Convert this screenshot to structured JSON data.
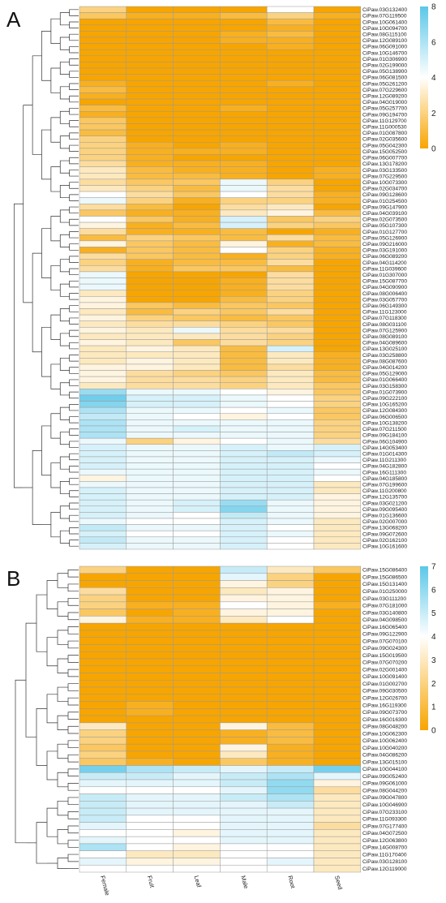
{
  "columns": [
    "Female",
    "Fruit",
    "Leaf",
    "Male",
    "Root",
    "Seed"
  ],
  "colors": {
    "low": "#F7A500",
    "mid": "#FFFFFF",
    "high": "#5BC7E8"
  },
  "chart_data": [
    {
      "type": "heatmap",
      "panel": "A",
      "min": 0,
      "mid": 4,
      "max": 8,
      "legend_ticks": [
        "8",
        "6",
        "4",
        "2",
        "0"
      ],
      "columns": [
        "Female",
        "Fruit",
        "Leaf",
        "Male",
        "Root",
        "Seed"
      ],
      "rows": [
        "CiPaw.03G132400",
        "CiPaw.07G119500",
        "CiPaw.10G061400",
        "CiPaw.10G094700",
        "CiPaw.08G115100",
        "CiPaw.12G089100",
        "CiPaw.06G091000",
        "CiPaw.10G146700",
        "CiPaw.01G306900",
        "CiPaw.02G199000",
        "CiPaw.05G138900",
        "CiPaw.06G081500",
        "CiPaw.05G261200",
        "CiPaw.07G229600",
        "CiPaw.12G089200",
        "CiPaw.04G019000",
        "CiPaw.05G257700",
        "CiPaw.09G194700",
        "CiPaw.11G129700",
        "CiPaw.11G000530",
        "CiPaw.01G087800",
        "CiPaw.02G035600",
        "CiPaw.05G042300",
        "CiPaw.15G052500",
        "CiPaw.06G007700",
        "CiPaw.13G178200",
        "CiPaw.03G133500",
        "CiPaw.07G229500",
        "CiPaw.10G073300",
        "CiPaw.02G034700",
        "CiPaw.09G128600",
        "CiPaw.01G254500",
        "CiPaw.09G147900",
        "CiPaw.04G039100",
        "CiPaw.02G073500",
        "CiPaw.05G107300",
        "CiPaw.01G127700",
        "CiPaw.05G126900",
        "CiPaw.09G216000",
        "CiPaw.03G191000",
        "CiPaw.06G089200",
        "CiPaw.04G114200",
        "CiPaw.11G039600",
        "CiPaw.01G307000",
        "CiPaw.15G087700",
        "CiPaw.04G090900",
        "CiPaw.08G006400",
        "CiPaw.03G057700",
        "CiPaw.06G149300",
        "CiPaw.11G123000",
        "CiPaw.07G118300",
        "CiPaw.08G031100",
        "CiPaw.07G125900",
        "CiPaw.08G089100",
        "CiPaw.04G089600",
        "CiPaw.13G025100",
        "CiPaw.03G258800",
        "CiPaw.08G087600",
        "CiPaw.04G014200",
        "CiPaw.05G129000",
        "CiPaw.01G066400",
        "CiPaw.03G158300",
        "CiPaw.01G073900",
        "CiPaw.09G222100",
        "CiPaw.10G165200",
        "CiPaw.12G084300",
        "CiPaw.06G006500",
        "CiPaw.10G138200",
        "CiPaw.07G211500",
        "CiPaw.09G184100",
        "CiPaw.06G104900",
        "CiPaw.14G053400",
        "CiPaw.01G014300",
        "CiPaw.11G211300",
        "CiPaw.04G182800",
        "CiPaw.16G111300",
        "CiPaw.04G185800",
        "CiPaw.07G199600",
        "CiPaw.11G200800",
        "CiPaw.12G135700",
        "CiPaw.03G021200",
        "CiPaw.09G095400",
        "CiPaw.01G136600",
        "CiPaw.02G007000",
        "CiPaw.13G068200",
        "CiPaw.09G072600",
        "CiPaw.02G162100",
        "CiPaw.10G161600"
      ],
      "values": [
        [
          2,
          0,
          0,
          0,
          4,
          0
        ],
        [
          1.5,
          0.5,
          0.5,
          1,
          2,
          0.5
        ],
        [
          0,
          0,
          0,
          0,
          1,
          0
        ],
        [
          0,
          0,
          0,
          0,
          0.5,
          0
        ],
        [
          0,
          0,
          0,
          0.5,
          1,
          0
        ],
        [
          0,
          0,
          0,
          0.5,
          0.5,
          0
        ],
        [
          0,
          0,
          0,
          0,
          0.5,
          0
        ],
        [
          0,
          0,
          0,
          0,
          0,
          0
        ],
        [
          0,
          0,
          0,
          0,
          0,
          0
        ],
        [
          0,
          0,
          0,
          0,
          0,
          0
        ],
        [
          0,
          0,
          0,
          0,
          0,
          0
        ],
        [
          0,
          0,
          0,
          0,
          0,
          0
        ],
        [
          0.5,
          0,
          0,
          0,
          0.5,
          0
        ],
        [
          1,
          0,
          0,
          0,
          0,
          0
        ],
        [
          0.5,
          0,
          0,
          0,
          0,
          0
        ],
        [
          0,
          0,
          0,
          0,
          0,
          0
        ],
        [
          1,
          0,
          0,
          0.5,
          0,
          0
        ],
        [
          0.5,
          0,
          0,
          0,
          0,
          0
        ],
        [
          1.5,
          0,
          0,
          0,
          0,
          0
        ],
        [
          1.5,
          0,
          0,
          0,
          0,
          0
        ],
        [
          1,
          0,
          0,
          0,
          0,
          0
        ],
        [
          2,
          0,
          0,
          0,
          0,
          0
        ],
        [
          2,
          0.5,
          0,
          0.5,
          0,
          0
        ],
        [
          2,
          0.5,
          0.5,
          0.5,
          0,
          0
        ],
        [
          2,
          0.5,
          0,
          0,
          0,
          0
        ],
        [
          2.5,
          0.5,
          0.5,
          0.5,
          0,
          0
        ],
        [
          3,
          1,
          0.5,
          0.5,
          0,
          0.5
        ],
        [
          3,
          1,
          1,
          0.5,
          0,
          0.5
        ],
        [
          2.5,
          1.5,
          1.5,
          4.5,
          2,
          0
        ],
        [
          3,
          2,
          1,
          4.5,
          2.5,
          0
        ],
        [
          4,
          2.5,
          1.5,
          4,
          2.5,
          0.5
        ],
        [
          4.5,
          2,
          0.5,
          2,
          2,
          0.5
        ],
        [
          2.5,
          1,
          0,
          2.5,
          3,
          0
        ],
        [
          1.5,
          0.5,
          0.5,
          3,
          3.5,
          1
        ],
        [
          4,
          1.5,
          0.5,
          5,
          1.5,
          2
        ],
        [
          3.5,
          0.5,
          1,
          5,
          2,
          1.5
        ],
        [
          2.5,
          0.5,
          0.5,
          1,
          0,
          0.5
        ],
        [
          1,
          2,
          1.5,
          1,
          2.5,
          1
        ],
        [
          3.5,
          1.5,
          1,
          3.5,
          0.5,
          1
        ],
        [
          0.5,
          1.5,
          1,
          4,
          2,
          0.5
        ],
        [
          2.5,
          1.5,
          1,
          0.5,
          2,
          0.5
        ],
        [
          2,
          0.5,
          1,
          1,
          2.5,
          0
        ],
        [
          2.5,
          0.5,
          1.5,
          1.5,
          1,
          0
        ],
        [
          4.5,
          0,
          0,
          0,
          2.5,
          0
        ],
        [
          4.5,
          0,
          0,
          0.5,
          2.5,
          0
        ],
        [
          4.5,
          0,
          0,
          0.5,
          2.5,
          0
        ],
        [
          3,
          0,
          0,
          0.5,
          2,
          0
        ],
        [
          3.5,
          0,
          0,
          1,
          2,
          0
        ],
        [
          3.5,
          1.5,
          1,
          1.5,
          1.5,
          0
        ],
        [
          3,
          1,
          2,
          1.5,
          2.5,
          0
        ],
        [
          3.5,
          2,
          1.5,
          1,
          1.5,
          0
        ],
        [
          3,
          2.5,
          2.5,
          2,
          1.5,
          0
        ],
        [
          3.5,
          3,
          4.5,
          2.5,
          2.5,
          0
        ],
        [
          3,
          3,
          3,
          2.5,
          2,
          0
        ],
        [
          3.5,
          3,
          1.5,
          2.5,
          2,
          0
        ],
        [
          3,
          3.5,
          3,
          1,
          5,
          0
        ],
        [
          3,
          3,
          3,
          1,
          3,
          0.5
        ],
        [
          3,
          3.5,
          3,
          1,
          3,
          0.5
        ],
        [
          3.5,
          3.5,
          3,
          1,
          2.5,
          0.5
        ],
        [
          3.5,
          2.5,
          2,
          1.5,
          3,
          1
        ],
        [
          3.5,
          2.5,
          2.5,
          2,
          3,
          1
        ],
        [
          3,
          2.5,
          2.5,
          2,
          3,
          1.5
        ],
        [
          6.5,
          4.5,
          4.5,
          4,
          3.5,
          1.5
        ],
        [
          7.5,
          5,
          5,
          4.5,
          4,
          2
        ],
        [
          7,
          5,
          5,
          4.5,
          4,
          2
        ],
        [
          6,
          4.5,
          4.5,
          4,
          4.5,
          1.5
        ],
        [
          5.5,
          4.5,
          4,
          3.5,
          4,
          1.5
        ],
        [
          6,
          4.5,
          4.5,
          4.5,
          4.5,
          2
        ],
        [
          6,
          4.5,
          5,
          4.5,
          4.5,
          2
        ],
        [
          6,
          4.5,
          4.5,
          4.5,
          4.5,
          2
        ],
        [
          4.5,
          2,
          3.5,
          4,
          4.5,
          2.5
        ],
        [
          5,
          4.5,
          4.5,
          5,
          4.5,
          5
        ],
        [
          5,
          4.5,
          4.5,
          5,
          5.5,
          5
        ],
        [
          5,
          4.5,
          4.5,
          5,
          5,
          4.5
        ],
        [
          5,
          4.5,
          4.5,
          5,
          5,
          4
        ],
        [
          4.5,
          4.5,
          4.5,
          5,
          5,
          4.5
        ],
        [
          3.5,
          4.5,
          4.5,
          5,
          5,
          4
        ],
        [
          4.5,
          4.5,
          4.5,
          5,
          5,
          3
        ],
        [
          5,
          4.5,
          4.5,
          5,
          5,
          3
        ],
        [
          5,
          4.5,
          4.5,
          5,
          5,
          3.5
        ],
        [
          5,
          4.5,
          5,
          6.5,
          4.5,
          3.5
        ],
        [
          5,
          4.5,
          5,
          7,
          4.5,
          3.5
        ],
        [
          5,
          4.5,
          4,
          5.5,
          4.5,
          3.5
        ],
        [
          4.5,
          4,
          4,
          5,
          4.5,
          3
        ],
        [
          5.5,
          4.5,
          4.5,
          5,
          4,
          3
        ],
        [
          5,
          4,
          4,
          5,
          4.5,
          3
        ],
        [
          5.5,
          4.5,
          4.5,
          5,
          4,
          3
        ],
        [
          5,
          4.5,
          4.5,
          5,
          4,
          3
        ]
      ]
    },
    {
      "type": "heatmap",
      "panel": "B",
      "min": 0,
      "mid": 4,
      "max": 7,
      "legend_ticks": [
        "7",
        "6",
        "5",
        "4",
        "3",
        "2",
        "1",
        "0"
      ],
      "columns": [
        "Female",
        "Fruit",
        "Leaf",
        "Male",
        "Root",
        "Seed"
      ],
      "rows": [
        "CiPaw.15G086400",
        "CiPaw.15G086500",
        "CiPaw.15G131400",
        "CiPaw.01G250000",
        "CiPaw.03G111200",
        "CiPaw.07G181000",
        "CiPaw.03G140800",
        "CiPaw.04G098500",
        "CiPaw.16G065400",
        "CiPaw.09G122900",
        "CiPaw.07G070100",
        "CiPaw.09G024300",
        "CiPaw.15G019500",
        "CiPaw.07G070200",
        "CiPaw.02G001400",
        "CiPaw.10G091400",
        "CiPaw.01G002700",
        "CiPaw.09G030500",
        "CiPaw.12G026700",
        "CiPaw.16G119300",
        "CiPaw.09G073700",
        "CiPaw.16G016300",
        "CiPaw.08G048200",
        "CiPaw.10G062300",
        "CiPaw.10G062400",
        "CiPaw.10G040200",
        "CiPaw.04G086200",
        "CiPaw.13G015100",
        "CiPaw.10G044100",
        "CiPaw.09G052400",
        "CiPaw.09G061000",
        "CiPaw.08G044200",
        "CiPaw.09G047800",
        "CiPaw.10G046900",
        "CiPaw.07G233100",
        "CiPaw.11G093300",
        "CiPaw.07G177400",
        "CiPaw.04G072500",
        "CiPaw.12G063800",
        "CiPaw.14G008700",
        "CiPaw.11G170400",
        "CiPaw.03G128100",
        "CiPaw.12G119000"
      ],
      "values": [
        [
          2,
          0,
          0,
          5,
          3,
          1.5
        ],
        [
          0,
          0,
          0,
          4.5,
          2,
          0
        ],
        [
          0,
          0,
          0,
          3.5,
          2,
          0
        ],
        [
          2.5,
          0,
          0,
          3,
          3.5,
          0
        ],
        [
          2,
          0,
          0,
          3.5,
          3.5,
          0
        ],
        [
          2,
          0.5,
          0.5,
          4,
          3.5,
          0.5
        ],
        [
          1.5,
          0,
          0.5,
          3.5,
          3.5,
          0
        ],
        [
          3.5,
          0.5,
          0.5,
          3,
          4,
          0
        ],
        [
          0,
          0,
          0,
          0,
          0,
          0
        ],
        [
          0,
          0,
          0,
          0,
          0,
          0
        ],
        [
          0,
          0,
          0,
          0,
          0,
          0
        ],
        [
          0,
          0,
          0,
          0,
          0,
          0
        ],
        [
          0,
          0,
          0,
          0,
          0,
          0
        ],
        [
          0,
          0,
          0,
          0,
          0,
          0
        ],
        [
          0,
          0,
          0,
          0,
          0,
          0
        ],
        [
          0,
          0,
          0,
          0,
          0,
          0
        ],
        [
          0,
          0,
          0,
          0,
          0,
          0
        ],
        [
          0,
          0,
          0,
          0,
          0,
          0
        ],
        [
          0,
          0,
          0,
          0,
          0,
          0
        ],
        [
          0,
          0.5,
          0,
          0,
          0,
          0
        ],
        [
          0,
          0.5,
          0,
          0,
          0,
          0
        ],
        [
          0,
          0,
          0,
          0,
          0,
          0
        ],
        [
          3,
          0,
          0,
          3.5,
          1,
          0
        ],
        [
          2,
          0,
          0,
          0.5,
          1,
          0
        ],
        [
          2,
          0,
          0,
          0.5,
          1,
          0
        ],
        [
          1.5,
          0,
          0,
          3.5,
          0.5,
          0
        ],
        [
          2,
          0,
          0,
          3,
          0.5,
          0
        ],
        [
          1.5,
          0.5,
          0,
          1.5,
          0.5,
          0
        ],
        [
          6.5,
          5.5,
          5,
          4.5,
          5,
          6.5
        ],
        [
          5,
          5,
          4.5,
          5,
          5.5,
          4.5
        ],
        [
          4.5,
          4.5,
          4.5,
          5,
          6,
          3.5
        ],
        [
          4,
          4,
          4,
          4.5,
          6,
          2.5
        ],
        [
          5,
          4.5,
          4.5,
          5,
          5.5,
          3
        ],
        [
          5,
          4.5,
          4.5,
          4.5,
          5,
          3
        ],
        [
          5,
          4.5,
          4.5,
          4.5,
          4.5,
          3
        ],
        [
          5,
          4,
          4,
          4.5,
          4.5,
          3
        ],
        [
          4.5,
          4,
          4,
          4.5,
          4.5,
          2.5
        ],
        [
          4,
          4,
          3.5,
          4.5,
          4.5,
          3
        ],
        [
          4.5,
          4,
          4,
          4.5,
          4.5,
          3
        ],
        [
          5.5,
          4,
          3.5,
          4,
          4,
          3
        ],
        [
          4,
          3,
          3,
          4,
          4,
          3
        ],
        [
          4.5,
          3.5,
          3.5,
          4,
          4.5,
          3
        ],
        [
          4,
          4,
          4,
          4,
          4,
          3
        ]
      ]
    }
  ]
}
